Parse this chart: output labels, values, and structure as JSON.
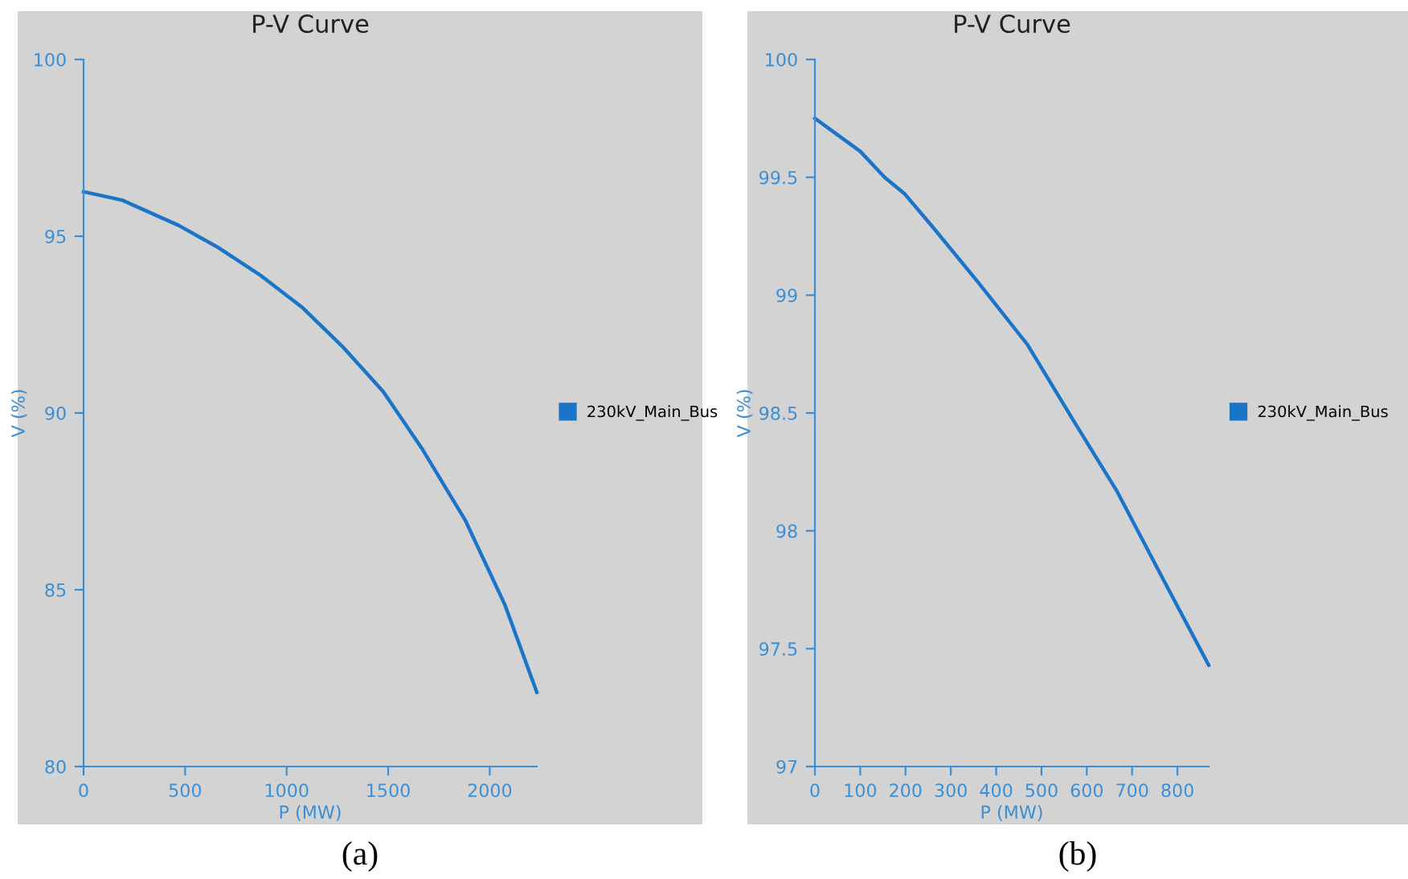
{
  "chart_data": [
    {
      "type": "line",
      "title": "P-V Curve",
      "xlabel": "P (MW)",
      "ylabel": "V (%)",
      "annotations": [
        "(a)"
      ],
      "series": [
        {
          "name": "230kV_Main_Bus",
          "color": "#1a74c8",
          "x": [
            0,
            190,
            467,
            666,
            865,
            1080,
            1273,
            1475,
            1669,
            1881,
            2075,
            2232
          ],
          "values": [
            96.26,
            96.02,
            95.31,
            94.67,
            93.92,
            92.97,
            91.89,
            90.61,
            88.97,
            86.95,
            84.57,
            82.1
          ]
        }
      ],
      "xlim": [
        0,
        2232
      ],
      "xticks": [
        0,
        500,
        1000,
        1500,
        2000
      ],
      "ylim": [
        80,
        100
      ],
      "yticks": [
        80,
        85,
        90,
        95,
        100
      ],
      "legend": "right",
      "marker": "none",
      "line_style": "solid",
      "grid": false
    },
    {
      "type": "line",
      "title": "P-V Curve",
      "xlabel": "P (MW)",
      "ylabel": "V (%)",
      "annotations": [
        "(b)"
      ],
      "series": [
        {
          "name": "230kV_Main_Bus",
          "color": "#1a74c8",
          "x": [
            0,
            100,
            154,
            198,
            264,
            362,
            469,
            570,
            666,
            767,
            869
          ],
          "values": [
            99.75,
            99.61,
            99.5,
            99.43,
            99.28,
            99.05,
            98.79,
            98.47,
            98.17,
            97.8,
            97.43
          ]
        }
      ],
      "xlim": [
        0,
        869
      ],
      "xticks": [
        0,
        100,
        200,
        300,
        400,
        500,
        600,
        700,
        800
      ],
      "ylim": [
        97,
        100
      ],
      "yticks": [
        97,
        97.5,
        98,
        98.5,
        99,
        99.5,
        100
      ],
      "legend": "right",
      "marker": "none",
      "line_style": "solid",
      "grid": false
    }
  ]
}
